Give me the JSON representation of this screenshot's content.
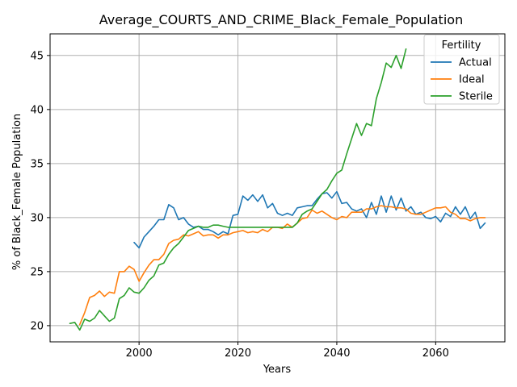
{
  "chart_data": {
    "type": "line",
    "title": "Average_COURTS_AND_CRIME_Black_Female_Population",
    "xlabel": "Years",
    "ylabel": "% of Black_Female Population",
    "xlim": [
      1982,
      2074
    ],
    "ylim": [
      18.5,
      47
    ],
    "xticks": [
      2000,
      2020,
      2040,
      2060
    ],
    "yticks": [
      20,
      25,
      30,
      35,
      40,
      45
    ],
    "grid": true,
    "legend": {
      "title": "Fertility",
      "position": "top-right"
    },
    "series": [
      {
        "name": "Actual",
        "color": "#1f77b4",
        "x": [
          1999,
          2000,
          2001,
          2002,
          2003,
          2004,
          2005,
          2006,
          2007,
          2008,
          2009,
          2010,
          2011,
          2012,
          2013,
          2014,
          2015,
          2016,
          2017,
          2018,
          2019,
          2020,
          2021,
          2022,
          2023,
          2024,
          2025,
          2026,
          2027,
          2028,
          2029,
          2030,
          2031,
          2032,
          2033,
          2034,
          2035,
          2036,
          2037,
          2038,
          2039,
          2040,
          2041,
          2042,
          2043,
          2044,
          2045,
          2046,
          2047,
          2048,
          2049,
          2050,
          2051,
          2052,
          2053,
          2054,
          2055,
          2056,
          2057,
          2058,
          2059,
          2060,
          2061,
          2062,
          2063,
          2064,
          2065,
          2066,
          2067,
          2068,
          2069,
          2070
        ],
        "values": [
          27.7,
          27.2,
          28.2,
          28.7,
          29.2,
          29.8,
          29.8,
          31.2,
          30.9,
          29.8,
          30.0,
          29.4,
          29.1,
          29.2,
          28.9,
          28.9,
          28.7,
          28.4,
          28.7,
          28.5,
          30.2,
          30.3,
          32.0,
          31.6,
          32.1,
          31.5,
          32.1,
          30.9,
          31.3,
          30.4,
          30.2,
          30.4,
          30.2,
          30.9,
          31.0,
          31.1,
          31.1,
          31.7,
          32.2,
          32.3,
          31.8,
          32.4,
          31.3,
          31.4,
          30.8,
          30.6,
          30.8,
          30.0,
          31.4,
          30.3,
          32.0,
          30.5,
          32.0,
          30.7,
          31.8,
          30.6,
          31.0,
          30.3,
          30.5,
          30.0,
          29.9,
          30.1,
          29.6,
          30.4,
          30.1,
          31.0,
          30.3,
          31.0,
          29.9,
          30.5,
          29.0,
          29.5
        ]
      },
      {
        "name": "Ideal",
        "color": "#ff7f0e",
        "x": [
          1988,
          1989,
          1990,
          1991,
          1992,
          1993,
          1994,
          1995,
          1996,
          1997,
          1998,
          1999,
          2000,
          2001,
          2002,
          2003,
          2004,
          2005,
          2006,
          2007,
          2008,
          2009,
          2010,
          2011,
          2012,
          2013,
          2014,
          2015,
          2016,
          2017,
          2018,
          2019,
          2020,
          2021,
          2022,
          2023,
          2024,
          2025,
          2026,
          2027,
          2028,
          2029,
          2030,
          2031,
          2032,
          2033,
          2034,
          2035,
          2036,
          2037,
          2038,
          2039,
          2040,
          2041,
          2042,
          2043,
          2044,
          2045,
          2046,
          2047,
          2048,
          2049,
          2050,
          2051,
          2052,
          2053,
          2054,
          2055,
          2056,
          2057,
          2058,
          2059,
          2060,
          2061,
          2062,
          2063,
          2064,
          2065,
          2066,
          2067,
          2068,
          2069,
          2070
        ],
        "values": [
          20.1,
          21.2,
          22.6,
          22.8,
          23.2,
          22.7,
          23.1,
          23.0,
          25.0,
          25.0,
          25.5,
          25.2,
          24.1,
          24.9,
          25.6,
          26.1,
          26.1,
          26.6,
          27.6,
          27.9,
          28.0,
          28.4,
          28.3,
          28.5,
          28.7,
          28.3,
          28.4,
          28.4,
          28.1,
          28.4,
          28.4,
          28.6,
          28.7,
          28.8,
          28.6,
          28.7,
          28.6,
          28.9,
          28.7,
          29.1,
          29.1,
          29.0,
          29.4,
          29.1,
          29.5,
          29.9,
          30.0,
          30.7,
          30.4,
          30.6,
          30.3,
          30.0,
          29.8,
          30.1,
          30.0,
          30.5,
          30.5,
          30.5,
          30.8,
          30.8,
          31.0,
          31.1,
          31.0,
          31.0,
          30.9,
          30.9,
          30.8,
          30.4,
          30.3,
          30.3,
          30.5,
          30.7,
          30.9,
          30.9,
          31.0,
          30.5,
          30.3,
          29.9,
          29.9,
          29.7,
          29.9,
          30.0,
          30.0
        ]
      },
      {
        "name": "Sterile",
        "color": "#2ca02c",
        "x": [
          1986,
          1987,
          1988,
          1989,
          1990,
          1991,
          1992,
          1993,
          1994,
          1995,
          1996,
          1997,
          1998,
          1999,
          2000,
          2001,
          2002,
          2003,
          2004,
          2005,
          2006,
          2007,
          2008,
          2009,
          2010,
          2011,
          2012,
          2013,
          2014,
          2015,
          2016,
          2017,
          2018,
          2019,
          2020,
          2021,
          2022,
          2023,
          2024,
          2025,
          2026,
          2027,
          2028,
          2029,
          2030,
          2031,
          2032,
          2033,
          2034,
          2035,
          2036,
          2037,
          2038,
          2039,
          2040,
          2041,
          2042,
          2043,
          2044,
          2045,
          2046,
          2047,
          2048,
          2049,
          2050,
          2051,
          2052,
          2053,
          2054
        ],
        "values": [
          20.2,
          20.3,
          19.6,
          20.6,
          20.4,
          20.7,
          21.4,
          20.9,
          20.4,
          20.7,
          22.5,
          22.8,
          23.5,
          23.1,
          23.0,
          23.5,
          24.2,
          24.6,
          25.6,
          25.8,
          26.6,
          27.2,
          27.6,
          28.2,
          28.8,
          29.0,
          29.2,
          29.1,
          29.1,
          29.3,
          29.3,
          29.2,
          29.1,
          29.1,
          29.1,
          29.1,
          29.1,
          29.1,
          29.1,
          29.1,
          29.1,
          29.1,
          29.1,
          29.1,
          29.1,
          29.1,
          29.5,
          30.3,
          30.6,
          30.8,
          31.5,
          32.2,
          32.6,
          33.4,
          34.1,
          34.4,
          35.9,
          37.3,
          38.7,
          37.6,
          38.7,
          38.5,
          41.0,
          42.5,
          44.3,
          43.9,
          45.0,
          43.8,
          45.6
        ]
      }
    ]
  }
}
